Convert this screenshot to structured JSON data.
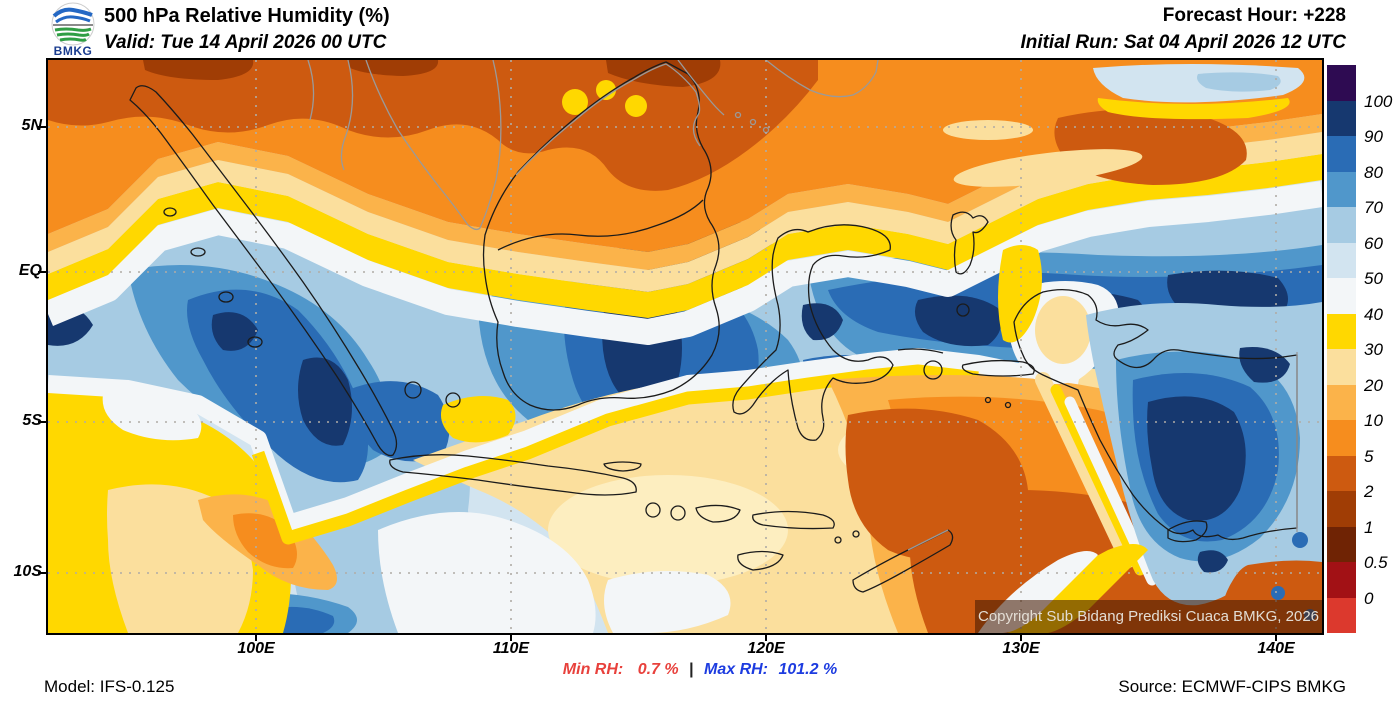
{
  "header": {
    "title": "500 hPa Relative Humidity (%)",
    "valid": "Valid: Tue 14 April 2026 00 UTC",
    "forecast_hour": "Forecast Hour: +228",
    "initial_run": "Initial Run: Sat 04 April 2026 12 UTC",
    "logo_text": "BMKG"
  },
  "footer": {
    "model": "Model: IFS-0.125",
    "min_label": "Min RH:",
    "min_value": "0.7 %",
    "separator": "|",
    "max_label": "Max RH:",
    "max_value": "101.2 %",
    "source": "Source: ECMWF-CIPS BMKG"
  },
  "map": {
    "copyright": "Copyright Sub Bidang Prediksi Cuaca BMKG, 2026",
    "x_axis": [
      {
        "label": "100E",
        "px": 256
      },
      {
        "label": "110E",
        "px": 511
      },
      {
        "label": "120E",
        "px": 766
      },
      {
        "label": "130E",
        "px": 1021
      },
      {
        "label": "140E",
        "px": 1276
      }
    ],
    "y_axis": [
      {
        "label": "5N",
        "py": 127
      },
      {
        "label": "EQ",
        "py": 272
      },
      {
        "label": "5S",
        "py": 422
      },
      {
        "label": "10S",
        "py": 573
      }
    ]
  },
  "colorbar": {
    "labels_top_to_bottom": [
      "100",
      "90",
      "80",
      "70",
      "60",
      "50",
      "40",
      "30",
      "20",
      "10",
      "5",
      "2",
      "1",
      "0.5",
      "0"
    ],
    "colors_top_to_bottom": [
      "#2e0b52",
      "#16386f",
      "#2a6cb5",
      "#5097cb",
      "#a6cbe3",
      "#d2e4f0",
      "#f3f6f8",
      "#ffd800",
      "#fbdf9d",
      "#fbb34a",
      "#f68d1e",
      "#cd5a10",
      "#a03d05",
      "#6f2304",
      "#a21115",
      "#dc392d"
    ]
  },
  "palette": {
    "c90": "#16386f",
    "c80": "#2a6cb5",
    "c70": "#5097cb",
    "c60": "#a6cbe3",
    "c50": "#d2e4f0",
    "c40": "#f3f6f8",
    "c30": "#ffd800",
    "c25": "#fdeec0",
    "c20": "#fbdf9d",
    "c10": "#fbb34a",
    "c5": "#f68d1e",
    "c2": "#cd5a10",
    "c1": "#a03d05",
    "coast_id": "#1b1b1b",
    "coast_foreign": "#9a9a9a",
    "grid": "#b0aca6",
    "logo_blue": "#2468c4",
    "logo_green": "#2f9e44"
  }
}
